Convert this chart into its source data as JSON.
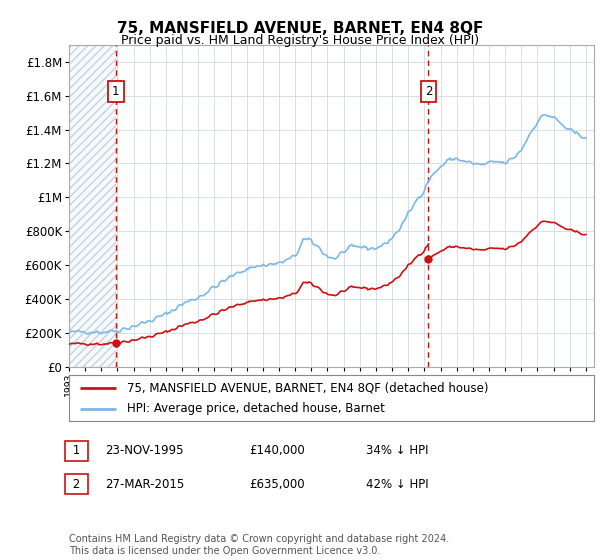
{
  "title": "75, MANSFIELD AVENUE, BARNET, EN4 8QF",
  "subtitle": "Price paid vs. HM Land Registry's House Price Index (HPI)",
  "footer": "Contains HM Land Registry data © Crown copyright and database right 2024.\nThis data is licensed under the Open Government Licence v3.0.",
  "legend_line1": "75, MANSFIELD AVENUE, BARNET, EN4 8QF (detached house)",
  "legend_line2": "HPI: Average price, detached house, Barnet",
  "table_rows": [
    {
      "num": "1",
      "date": "23-NOV-1995",
      "price": "£140,000",
      "hpi": "34% ↓ HPI"
    },
    {
      "num": "2",
      "date": "27-MAR-2015",
      "price": "£635,000",
      "hpi": "42% ↓ HPI"
    }
  ],
  "sale1_year": 1995.9,
  "sale1_price": 140000,
  "sale2_year": 2015.25,
  "sale2_price": 635000,
  "hpi_color": "#7ab8e8",
  "sale_color": "#cc1111",
  "vline_color": "#cc1111",
  "hatch_color": "#c8d4e0",
  "grid_color": "#d0dae4",
  "ylim_max": 1900000,
  "ylim_min": 0,
  "xlim_min": 1993.0,
  "xlim_max": 2025.5
}
